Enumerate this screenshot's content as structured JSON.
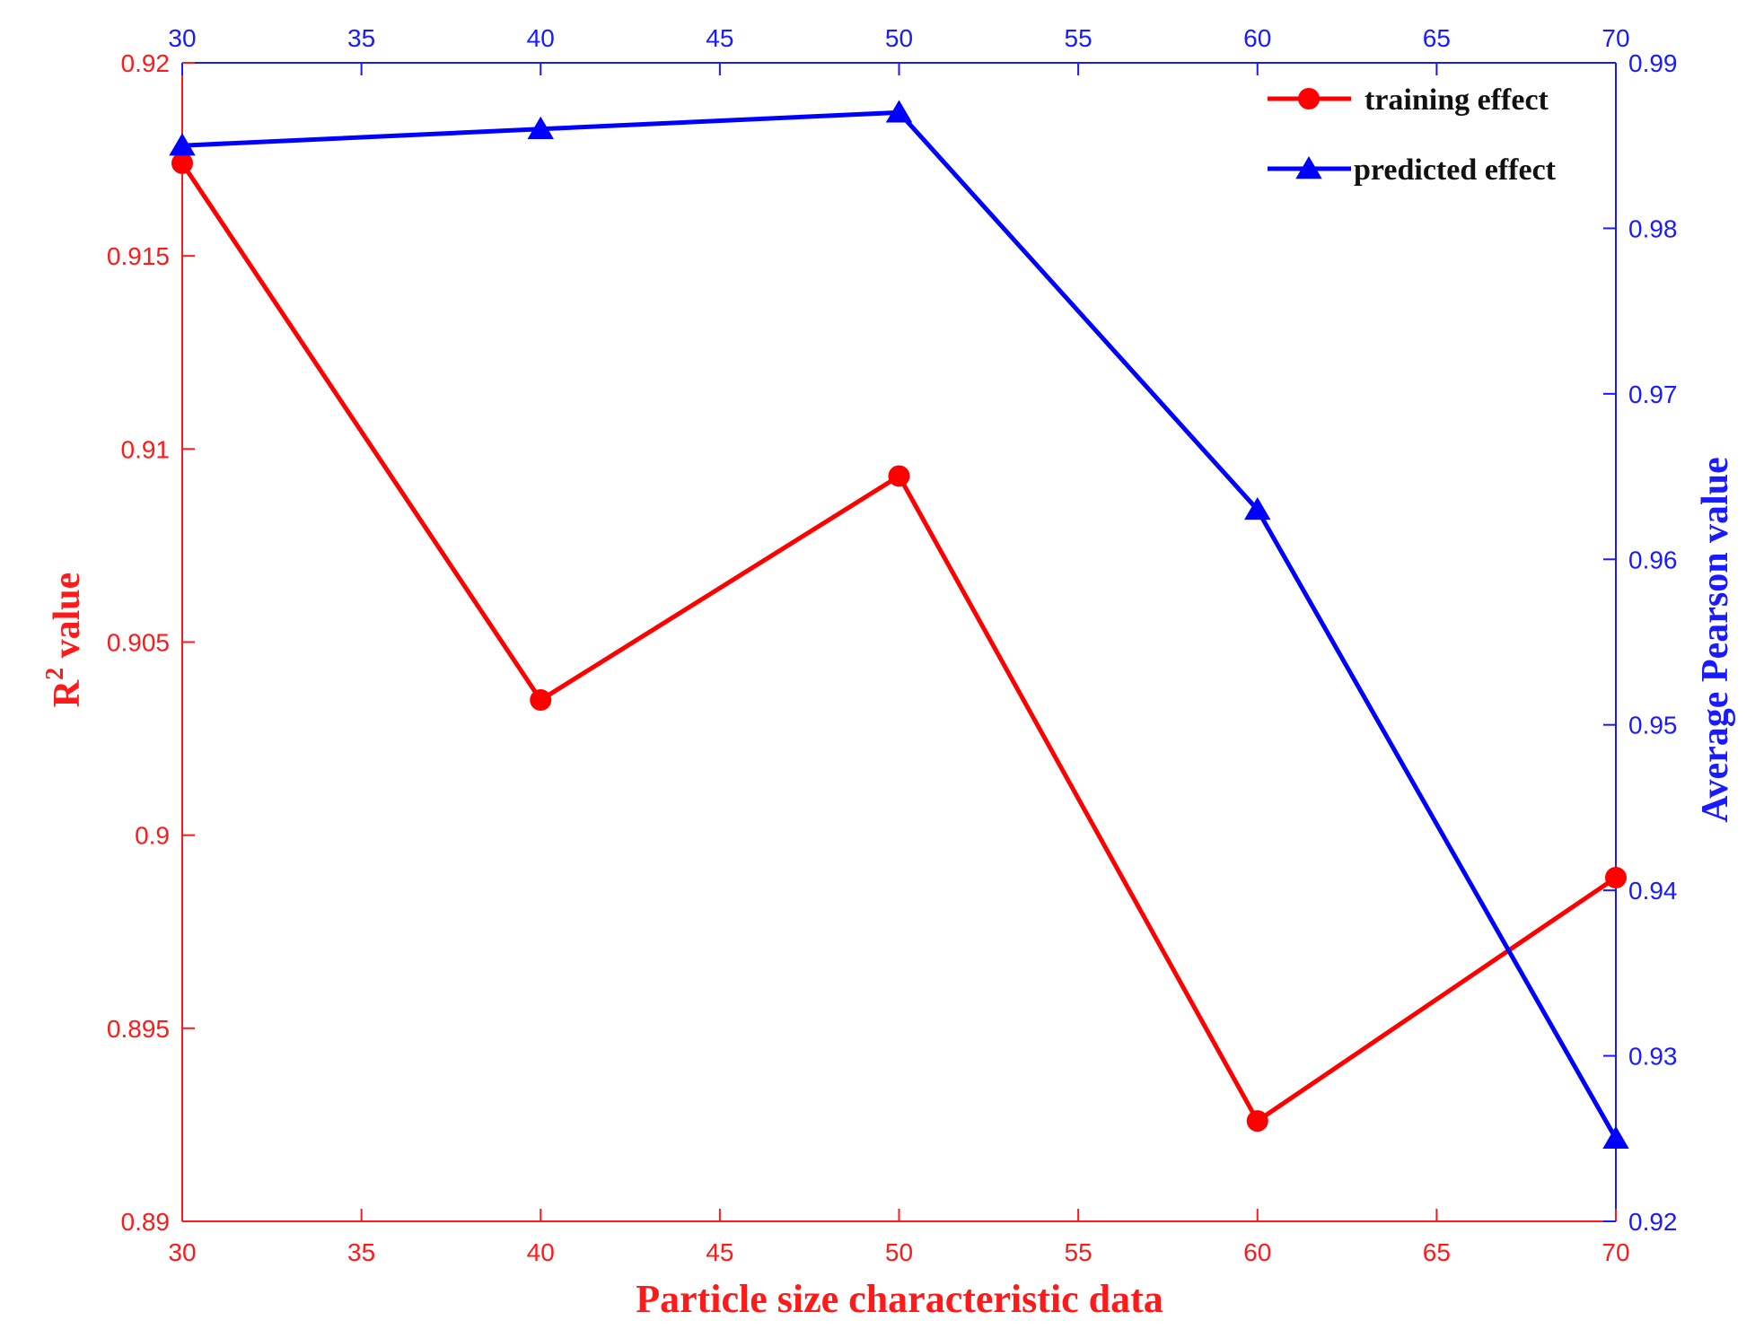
{
  "colors": {
    "left_axis": "#ff1a1a",
    "right_axis": "#1a1aff",
    "training_series": "#ff0000",
    "predicted_series": "#0000ff"
  },
  "chart_data": {
    "type": "line",
    "title": "",
    "xlabel": "Particle size characteristic data",
    "ylabel_left": "R",
    "ylabel_left_superscript": "2",
    "ylabel_left_suffix": " value",
    "ylabel_right": "Average Pearson value",
    "x": [
      30,
      40,
      50,
      60,
      70
    ],
    "xlim": [
      30,
      70
    ],
    "x_ticks": [
      30,
      35,
      40,
      45,
      50,
      55,
      60,
      65,
      70
    ],
    "ylim_left": [
      0.89,
      0.92
    ],
    "y_ticks_left": [
      "0.89",
      "0.895",
      "0.9",
      "0.905",
      "0.91",
      "0.915",
      "0.92"
    ],
    "ylim_right": [
      0.92,
      0.99
    ],
    "y_ticks_right": [
      "0.92",
      "0.93",
      "0.94",
      "0.95",
      "0.96",
      "0.97",
      "0.98",
      "0.99"
    ],
    "grid": false,
    "legend_position": "top-right",
    "series": [
      {
        "name": "training effect",
        "axis": "left",
        "marker": "circle",
        "values": [
          0.9174,
          0.9035,
          0.9093,
          0.8926,
          0.8989
        ]
      },
      {
        "name": "predicted effect",
        "axis": "right",
        "marker": "triangle",
        "values": [
          0.985,
          0.986,
          0.987,
          0.963,
          0.925
        ]
      }
    ]
  }
}
